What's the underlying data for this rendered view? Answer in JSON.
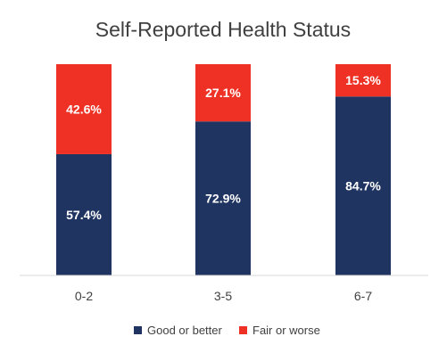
{
  "chart_data": {
    "type": "bar",
    "stacked": true,
    "title": "Self-Reported Health Status",
    "categories": [
      "0-2",
      "3-5",
      "6-7"
    ],
    "series": [
      {
        "name": "Good or better",
        "values": [
          57.4,
          72.9,
          84.7
        ],
        "labels": [
          "57.4%",
          "72.9%",
          "84.7%"
        ],
        "color": "#1f3461"
      },
      {
        "name": "Fair or worse",
        "values": [
          42.6,
          27.1,
          15.3
        ],
        "labels": [
          "42.6%",
          "27.1%",
          "15.3%"
        ],
        "color": "#ee3124"
      }
    ],
    "ylim": [
      0,
      100
    ],
    "grid": false,
    "legend_position": "bottom",
    "data_label_color": "#ffffff",
    "axis_color": "#d9d9d9",
    "text_color": "#404040"
  }
}
